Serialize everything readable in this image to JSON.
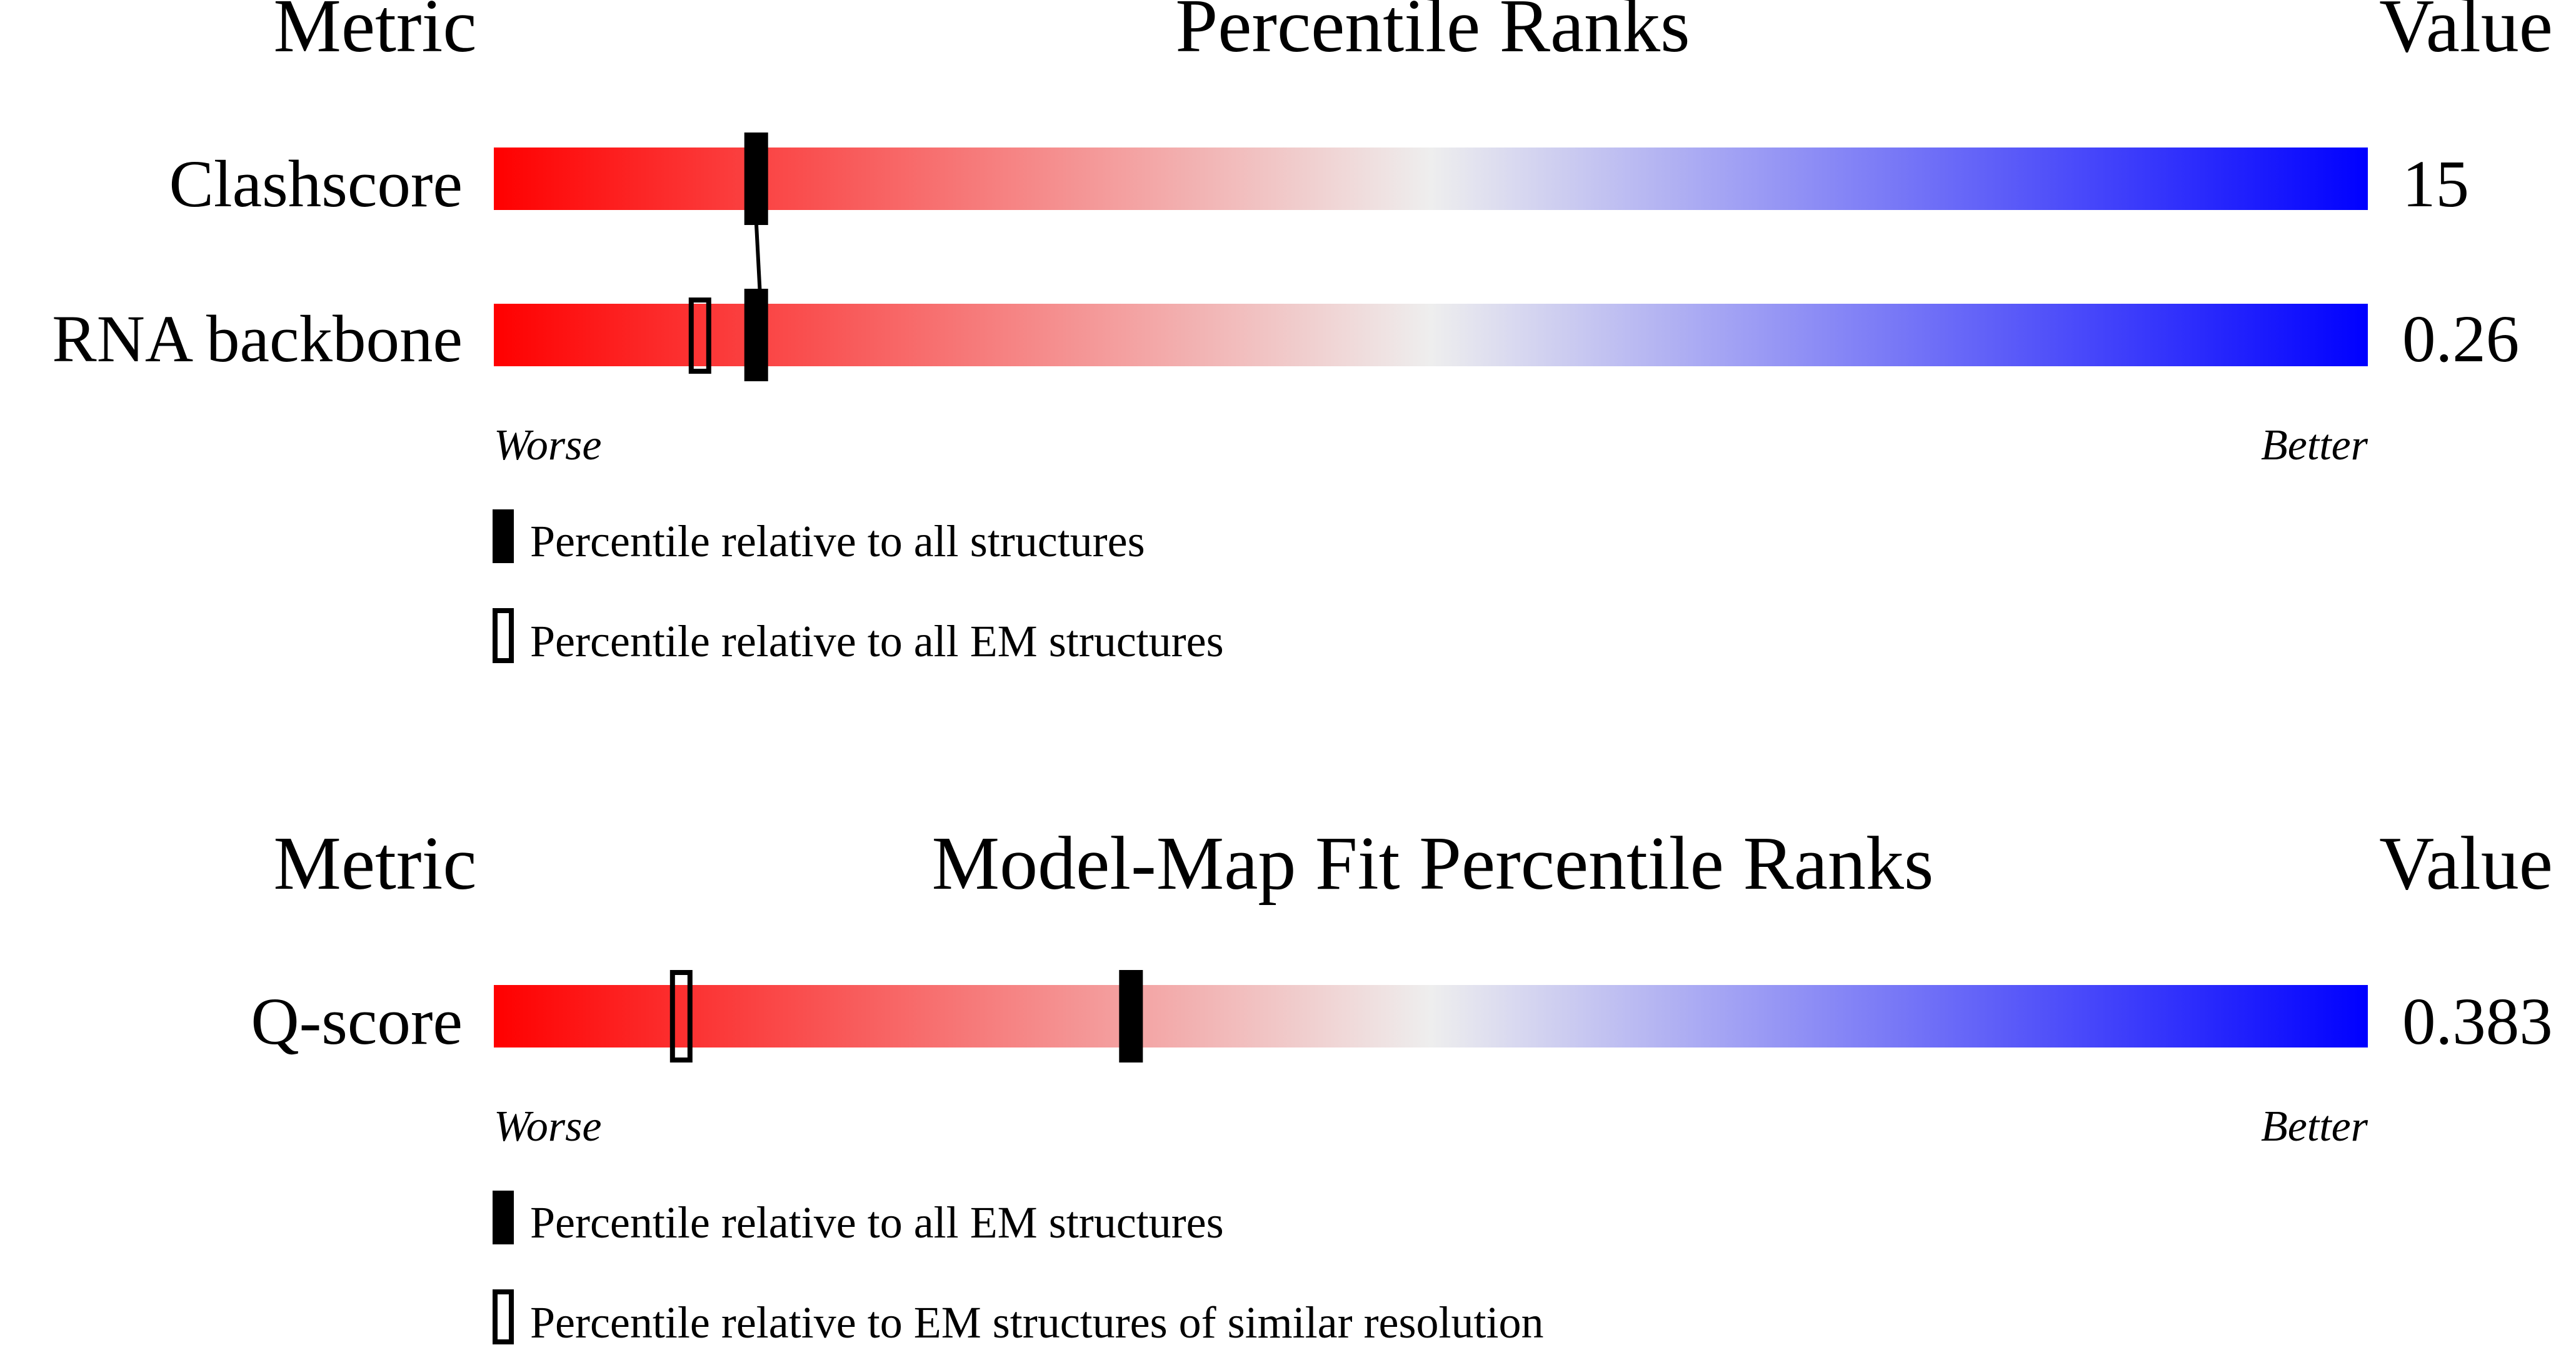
{
  "panels": [
    {
      "header": {
        "metric": "Metric",
        "title": "Percentile Ranks",
        "value": "Value"
      },
      "axis": {
        "worse": "Worse",
        "better": "Better"
      },
      "rows": [
        {
          "metric": "Clashscore",
          "value": "15",
          "percentile_all": 14,
          "percentile_em": null
        },
        {
          "metric": "RNA backbone",
          "value": "0.26",
          "percentile_all": 14,
          "percentile_em": 11
        }
      ],
      "legend": [
        {
          "marker": "filled",
          "text": "Percentile relative to all structures"
        },
        {
          "marker": "hollow",
          "text": "Percentile relative to all EM structures"
        }
      ]
    },
    {
      "header": {
        "metric": "Metric",
        "title": "Model-Map Fit Percentile Ranks",
        "value": "Value"
      },
      "axis": {
        "worse": "Worse",
        "better": "Better"
      },
      "rows": [
        {
          "metric": "Q-score",
          "value": "0.383",
          "percentile_all": 34,
          "percentile_em": 10
        }
      ],
      "legend": [
        {
          "marker": "filled",
          "text": "Percentile relative to all EM structures"
        },
        {
          "marker": "hollow",
          "text": "Percentile relative to EM structures of similar resolution"
        }
      ]
    }
  ],
  "colors": {
    "worse": "#ff0000",
    "mid": "#eeeeee",
    "better": "#0000ff",
    "marker": "#000000"
  },
  "chart_data": {
    "type": "bar",
    "categories": [
      "Clashscore",
      "RNA backbone",
      "Q-score"
    ],
    "xlim": [
      0,
      100
    ],
    "series": [
      {
        "name": "Percentile relative to all structures",
        "values": [
          14,
          14,
          null
        ]
      },
      {
        "name": "Percentile relative to all EM structures",
        "values": [
          null,
          11,
          34
        ]
      },
      {
        "name": "Percentile relative to EM structures of similar resolution",
        "values": [
          null,
          null,
          10
        ]
      }
    ],
    "values_printed": [
      "15",
      "0.26",
      "0.383"
    ]
  }
}
